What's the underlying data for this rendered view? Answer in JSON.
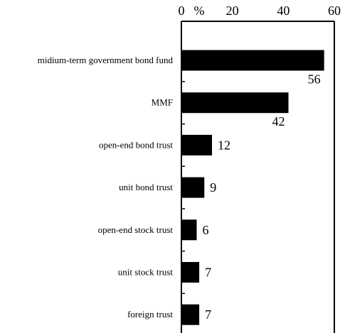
{
  "chart_data": {
    "type": "bar",
    "orientation": "horizontal",
    "categories": [
      "midium-term government bond fund",
      "MMF",
      "open-end bond trust",
      "unit bond trust",
      "open-end stock trust",
      "unit stock trust",
      "foreign trust"
    ],
    "values": [
      56,
      42,
      12,
      9,
      6,
      7,
      7
    ],
    "value_labels": [
      "56",
      "42",
      "12",
      "9",
      "6",
      "7",
      "7"
    ],
    "xlim": [
      0,
      60
    ],
    "xticks": [
      0,
      20,
      40,
      60
    ],
    "xtick_labels": [
      "0",
      "20",
      "40",
      "60"
    ],
    "unit_label": "%",
    "axis_position": "top",
    "bar_color": "#000000",
    "grid": false,
    "title": "",
    "xlabel": "",
    "ylabel": ""
  }
}
